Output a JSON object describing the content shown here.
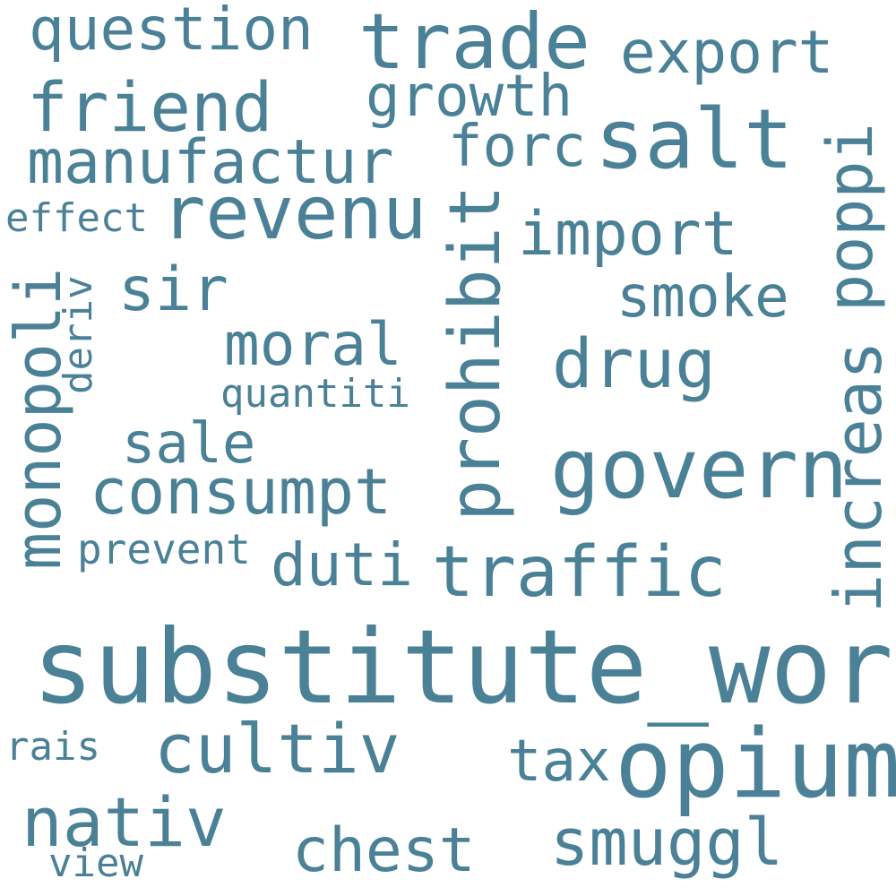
{
  "word_color": "#4a8196",
  "background": "#ffffff",
  "words": {
    "substitute_word": "substitute_word",
    "opium": "opium",
    "govern": "govern",
    "salt": "salt",
    "revenu": "revenu",
    "trade": "trade",
    "traffic": "traffic",
    "prohibit": "prohibit",
    "monopoli": "monopoli",
    "cultiv": "cultiv",
    "consumpt": "consumpt",
    "drug": "drug",
    "manufactur": "manufactur",
    "friend": "friend",
    "question": "question",
    "export": "export",
    "growth": "growth",
    "forc": "forc",
    "import": "import",
    "poppi": "poppi",
    "smoke": "smoke",
    "sir": "sir",
    "moral": "moral",
    "sale": "sale",
    "duti": "duti",
    "increas": "increas",
    "nativ": "nativ",
    "chest": "chest",
    "smuggl": "smuggl",
    "tax": "tax",
    "effect": "effect",
    "deriv": "deriv",
    "quantiti": "quantiti",
    "prevent": "prevent",
    "rais": "rais",
    "view": "view"
  }
}
